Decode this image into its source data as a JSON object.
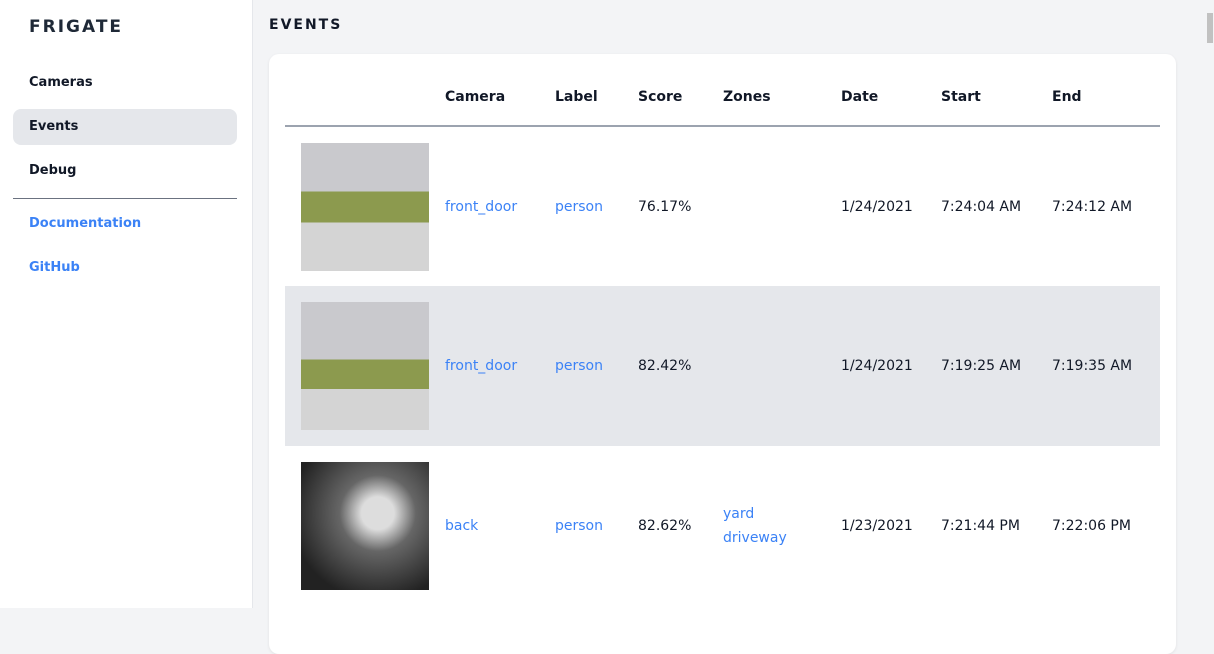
{
  "sidebar": {
    "logo": "FRIGATE",
    "items": [
      {
        "label": "Cameras"
      },
      {
        "label": "Events",
        "active": true
      },
      {
        "label": "Debug"
      }
    ],
    "links": [
      {
        "label": "Documentation"
      },
      {
        "label": "GitHub"
      }
    ]
  },
  "page": {
    "title": "EVENTS"
  },
  "table": {
    "headers": [
      "",
      "Camera",
      "Label",
      "Score",
      "Zones",
      "Date",
      "Start",
      "End"
    ],
    "rows": [
      {
        "camera": "front_door",
        "label": "person",
        "score": "76.17%",
        "zones": [
          "",
          ""
        ],
        "date": "1/24/2021",
        "start": "7:24:04 AM",
        "end": "7:24:12 AM"
      },
      {
        "camera": "front_door",
        "label": "person",
        "score": "82.42%",
        "zones": [
          "",
          ""
        ],
        "date": "1/24/2021",
        "start": "7:19:25 AM",
        "end": "7:19:35 AM"
      },
      {
        "camera": "back",
        "label": "person",
        "score": "82.62%",
        "zones": [
          "yard",
          "driveway"
        ],
        "date": "1/23/2021",
        "start": "7:21:44 PM",
        "end": "7:22:06 PM"
      }
    ]
  }
}
